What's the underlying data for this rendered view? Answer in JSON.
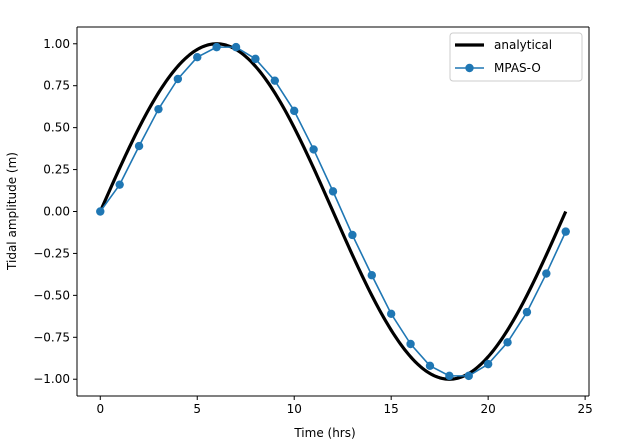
{
  "chart_data": {
    "type": "line",
    "title": "",
    "xlabel": "Time (hrs)",
    "ylabel": "Tidal amplitude (m)",
    "xlim": [
      -1.2,
      25.2
    ],
    "ylim": [
      -1.1,
      1.1
    ],
    "grid": false,
    "legend_position": "top-right",
    "x_ticks": [
      0,
      5,
      10,
      15,
      20,
      25
    ],
    "x_tick_labels": [
      "0",
      "5",
      "10",
      "15",
      "20",
      "25"
    ],
    "y_ticks": [
      1.0,
      0.75,
      0.5,
      0.25,
      0.0,
      -0.25,
      -0.5,
      -0.75,
      -1.0
    ],
    "y_tick_labels": [
      "1.00",
      "0.75",
      "0.50",
      "0.25",
      "0.00",
      "−0.25",
      "−0.50",
      "−0.75",
      "−1.00"
    ],
    "series": [
      {
        "name": "analytical",
        "style": "line",
        "color": "#000000",
        "function": "sin(2*pi*t/24)",
        "x_range": [
          0,
          24
        ]
      },
      {
        "name": "MPAS-O",
        "style": "line-marker",
        "color": "#1f77b4",
        "x": [
          0,
          1,
          2,
          3,
          4,
          5,
          6,
          7,
          8,
          9,
          10,
          11,
          12,
          13,
          14,
          15,
          16,
          17,
          18,
          19,
          20,
          21,
          22,
          23,
          24
        ],
        "values": [
          0.0,
          0.16,
          0.39,
          0.61,
          0.79,
          0.92,
          0.98,
          0.98,
          0.91,
          0.78,
          0.6,
          0.37,
          0.12,
          -0.14,
          -0.38,
          -0.61,
          -0.79,
          -0.92,
          -0.98,
          -0.98,
          -0.91,
          -0.78,
          -0.6,
          -0.37,
          -0.12
        ]
      }
    ]
  }
}
